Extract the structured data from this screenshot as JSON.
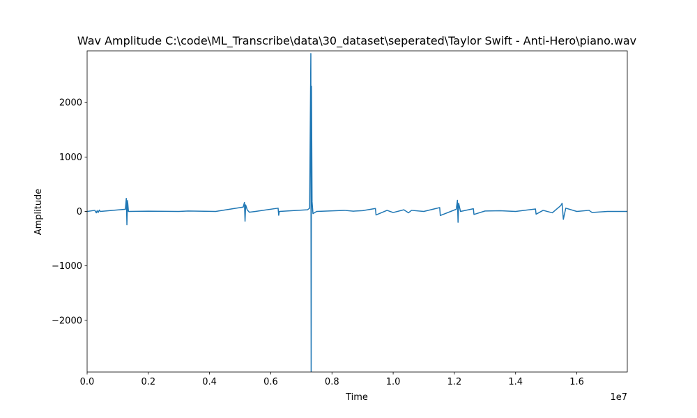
{
  "chart_data": {
    "type": "line",
    "title": "Wav Amplitude C:\\code\\ML_Transcribe\\data\\30_dataset\\seperated\\Taylor Swift - Anti-Hero\\piano.wav",
    "xlabel": "Time",
    "ylabel": "Amplitude",
    "x_offset_text": "1e7",
    "xlim": [
      0,
      17650000
    ],
    "ylim": [
      -2950,
      2950
    ],
    "x_ticks": [
      {
        "value": 0,
        "label": "0.0"
      },
      {
        "value": 2000000,
        "label": "0.2"
      },
      {
        "value": 4000000,
        "label": "0.4"
      },
      {
        "value": 6000000,
        "label": "0.6"
      },
      {
        "value": 8000000,
        "label": "0.8"
      },
      {
        "value": 10000000,
        "label": "1.0"
      },
      {
        "value": 12000000,
        "label": "1.2"
      },
      {
        "value": 14000000,
        "label": "1.4"
      },
      {
        "value": 16000000,
        "label": "1.6"
      }
    ],
    "y_ticks": [
      {
        "value": 2000,
        "label": "2000"
      },
      {
        "value": 1000,
        "label": "1000"
      },
      {
        "value": 0,
        "label": "0"
      },
      {
        "value": -1000,
        "label": "−1000"
      },
      {
        "value": -2000,
        "label": "−2000"
      }
    ],
    "grid": false,
    "legend": "none",
    "series_color": "#1f77b4",
    "series": [
      {
        "x": [
          0,
          250000,
          300000,
          330000,
          360000,
          400000,
          430000,
          1250000,
          1280000,
          1300000,
          1320000,
          1350000,
          2000000,
          3000000,
          3300000,
          4200000,
          5100000,
          5140000,
          5160000,
          5180000,
          5230000,
          5300000,
          5500000,
          6240000,
          6260000,
          6280000,
          7200000,
          7270000,
          7310000,
          7320000,
          7330000,
          7350000,
          7380000,
          7500000,
          8400000,
          8700000,
          9000000,
          9420000,
          9440000,
          9800000,
          10000000,
          10350000,
          10500000,
          10600000,
          11000000,
          11520000,
          11540000,
          12060000,
          12100000,
          12120000,
          12140000,
          12200000,
          12620000,
          12640000,
          13000000,
          13500000,
          14000000,
          14650000,
          14670000,
          14900000,
          15200000,
          15480000,
          15520000,
          15560000,
          15640000,
          16000000,
          16400000,
          16500000,
          17000000,
          17650000
        ],
        "y": [
          0,
          20,
          -25,
          15,
          -20,
          25,
          0,
          40,
          240,
          -245,
          200,
          0,
          5,
          0,
          8,
          0,
          80,
          165,
          -180,
          120,
          30,
          -15,
          0,
          60,
          -70,
          0,
          30,
          60,
          2900,
          -2940,
          2300,
          180,
          -40,
          0,
          20,
          5,
          15,
          55,
          -65,
          20,
          -20,
          30,
          -25,
          20,
          0,
          70,
          -75,
          40,
          205,
          -200,
          150,
          0,
          50,
          -55,
          8,
          12,
          0,
          45,
          -50,
          20,
          -25,
          110,
          150,
          -145,
          60,
          0,
          20,
          -20,
          0,
          0
        ]
      }
    ]
  }
}
